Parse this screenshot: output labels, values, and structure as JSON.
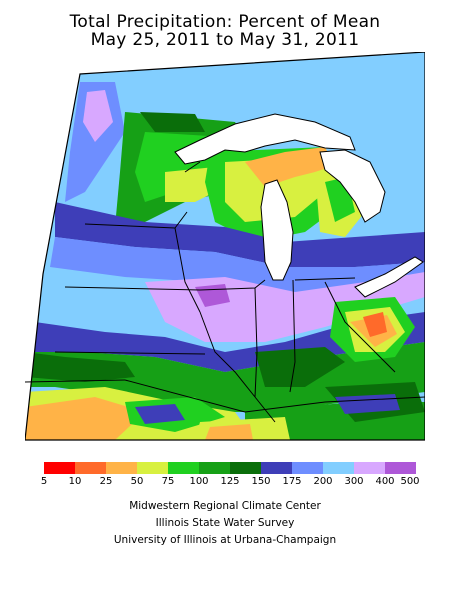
{
  "title": {
    "line1": "Total Precipitation: Percent of Mean",
    "line2": "May 25, 2011 to May 31, 2011"
  },
  "legend": {
    "colors": [
      "#ff0000",
      "#ff6a2a",
      "#ffb347",
      "#d8f040",
      "#20d020",
      "#16a016",
      "#0a6e0a",
      "#3e3eb8",
      "#6e8eff",
      "#82ceff",
      "#d8a8ff",
      "#ae58d8"
    ],
    "ticks": [
      "5",
      "10",
      "25",
      "50",
      "75",
      "100",
      "125",
      "150",
      "175",
      "200",
      "300",
      "400",
      "500"
    ]
  },
  "credits": {
    "line1": "Midwestern Regional Climate Center",
    "line2": "Illinois State Water Survey",
    "line3": "University of Illinois at Urbana-Champaign"
  },
  "map": {
    "theme": "Precipitation percent of mean, Midwest US",
    "colors": {
      "water": "#ffffff",
      "boundary": "#000000"
    }
  }
}
